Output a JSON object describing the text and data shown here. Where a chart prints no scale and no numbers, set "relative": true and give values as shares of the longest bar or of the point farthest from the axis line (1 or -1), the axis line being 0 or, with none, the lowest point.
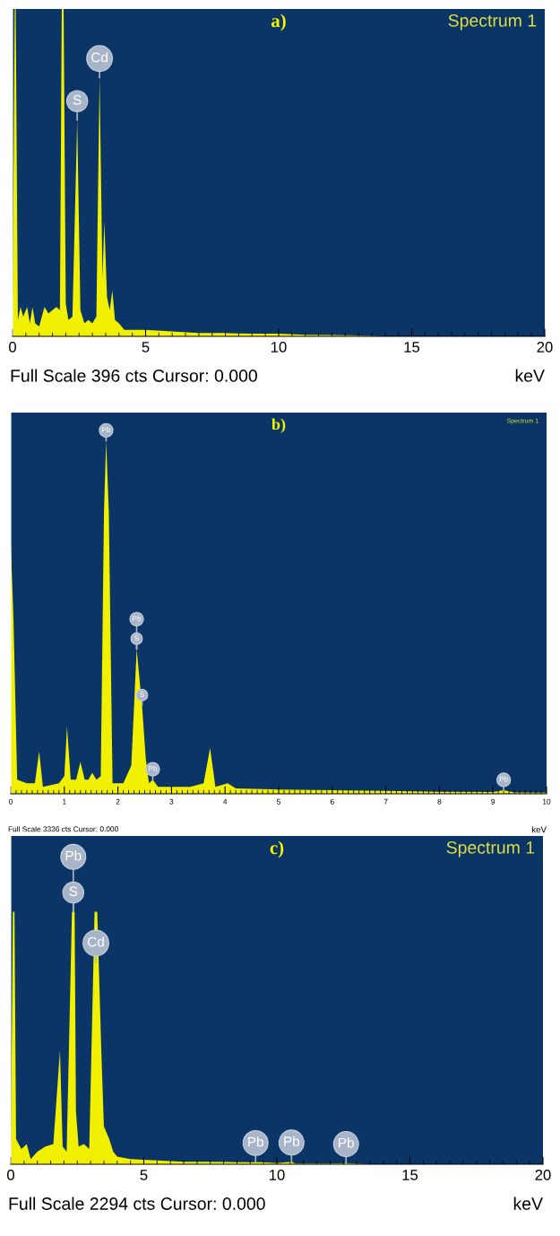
{
  "chart_data": [
    {
      "type": "area",
      "title": "a)",
      "xlabel": "keV",
      "relative": true,
      "tick_labels": "x",
      "grid": false,
      "legend": false,
      "xlim": [
        0,
        20
      ],
      "xticks": [
        0,
        5,
        10,
        15,
        20
      ],
      "series": [
        {
          "color": "#f0f000",
          "x": [
            0.0,
            0.08,
            0.12,
            0.2,
            0.3,
            0.4,
            0.55,
            0.65,
            0.75,
            0.85,
            1.0,
            1.2,
            1.35,
            1.5,
            1.65,
            1.78,
            1.85,
            1.92,
            2.0,
            2.1,
            2.25,
            2.43,
            2.55,
            2.7,
            2.85,
            3.0,
            3.15,
            3.27,
            3.38,
            3.45,
            3.55,
            3.65,
            3.75,
            3.85,
            4.0,
            4.2,
            5.0,
            6.0,
            7.0,
            8.0,
            9.0,
            10.0,
            11.0,
            12.0,
            13.0,
            14.0,
            20.0
          ],
          "values": [
            0.02,
            1.0,
            1.0,
            0.05,
            0.09,
            0.06,
            0.09,
            0.04,
            0.09,
            0.04,
            0.03,
            0.09,
            0.07,
            0.08,
            0.09,
            0.08,
            1.0,
            1.0,
            0.1,
            0.05,
            0.06,
            0.66,
            0.08,
            0.04,
            0.05,
            0.04,
            0.06,
            0.79,
            0.18,
            0.35,
            0.12,
            0.08,
            0.14,
            0.05,
            0.04,
            0.02,
            0.02,
            0.015,
            0.01,
            0.01,
            0.008,
            0.008,
            0.005,
            0.004,
            0.003,
            0.0,
            0.0
          ]
        }
      ],
      "annotations": [
        "Spectrum 1",
        "Full Scale 396 cts Cursor: 0.000",
        {
          "text": "S",
          "x": 2.43,
          "y": 0.66
        },
        {
          "text": "Cd",
          "x": 3.27,
          "y": 0.79
        }
      ]
    },
    {
      "type": "area",
      "title": "b)",
      "xlabel": "keV",
      "relative": true,
      "tick_labels": "x",
      "grid": false,
      "legend": false,
      "xlim": [
        0,
        10
      ],
      "xticks": [
        0,
        1,
        2,
        3,
        4,
        5,
        6,
        7,
        8,
        9,
        10
      ],
      "series": [
        {
          "color": "#f0f000",
          "x": [
            0.0,
            0.05,
            0.12,
            0.3,
            0.45,
            0.53,
            0.6,
            0.9,
            1.0,
            1.05,
            1.12,
            1.22,
            1.3,
            1.38,
            1.45,
            1.52,
            1.6,
            1.68,
            1.74,
            1.78,
            1.83,
            1.9,
            2.1,
            2.25,
            2.35,
            2.45,
            2.52,
            2.58,
            2.65,
            2.75,
            3.0,
            3.35,
            3.6,
            3.72,
            3.82,
            4.05,
            4.2,
            5.0,
            6.0,
            7.0,
            8.0,
            9.0,
            9.2,
            9.4,
            10.0
          ],
          "values": [
            0.71,
            0.5,
            0.04,
            0.03,
            0.03,
            0.12,
            0.02,
            0.03,
            0.05,
            0.19,
            0.04,
            0.04,
            0.09,
            0.04,
            0.04,
            0.06,
            0.04,
            0.05,
            0.8,
            1.0,
            0.8,
            0.03,
            0.03,
            0.08,
            0.41,
            0.25,
            0.1,
            0.03,
            0.04,
            0.02,
            0.02,
            0.02,
            0.03,
            0.13,
            0.02,
            0.03,
            0.015,
            0.012,
            0.01,
            0.008,
            0.006,
            0.005,
            0.01,
            0.004,
            0.003
          ]
        }
      ],
      "annotations": [
        "Spectrum 1",
        "Full Scale 3336 cts Cursor: 0.000",
        {
          "text": "Pb",
          "x": 1.78,
          "y": 1.0
        },
        {
          "text": "S",
          "x": 2.35,
          "y": 0.41
        },
        {
          "text": "Pb",
          "x": 2.35,
          "y": 0.41
        },
        {
          "text": "S",
          "x": 2.45,
          "y": 0.25
        },
        {
          "text": "Pb",
          "x": 2.65,
          "y": 0.04
        },
        {
          "text": "Pb",
          "x": 9.2,
          "y": 0.01
        }
      ]
    },
    {
      "type": "area",
      "title": "c)",
      "xlabel": "keV",
      "relative": true,
      "tick_labels": "x",
      "grid": false,
      "legend": false,
      "xlim": [
        0,
        20
      ],
      "xticks": [
        0,
        5,
        10,
        15,
        20
      ],
      "series": [
        {
          "color": "#f0f000",
          "x": [
            0.0,
            0.08,
            0.14,
            0.2,
            0.3,
            0.4,
            0.6,
            0.75,
            1.0,
            1.3,
            1.6,
            1.85,
            1.95,
            2.1,
            2.3,
            2.4,
            2.45,
            2.55,
            2.75,
            2.95,
            3.15,
            3.25,
            3.4,
            3.5,
            3.7,
            3.85,
            4.0,
            4.5,
            5.5,
            6.5,
            7.5,
            8.5,
            9.5,
            10.0,
            10.55,
            10.7,
            12.0,
            12.6,
            13.5,
            20.0
          ],
          "values": [
            0.02,
            1.0,
            1.0,
            0.1,
            0.08,
            0.06,
            0.08,
            0.02,
            0.05,
            0.07,
            0.08,
            0.45,
            0.07,
            0.05,
            1.0,
            1.0,
            0.21,
            0.07,
            0.08,
            0.06,
            1.0,
            1.0,
            0.46,
            0.15,
            0.1,
            0.05,
            0.03,
            0.02,
            0.015,
            0.01,
            0.01,
            0.008,
            0.008,
            0.004,
            0.01,
            0.003,
            0.003,
            0.004,
            0.0,
            0.0
          ]
        }
      ],
      "annotations": [
        "Spectrum 1",
        "Full Scale 2294 cts Cursor: 0.000",
        {
          "text": "S",
          "x": 2.35,
          "y": 1.0
        },
        {
          "text": "Pb",
          "x": 2.35,
          "y": 1.0
        },
        {
          "text": "Cd",
          "x": 3.2,
          "y": 0.8
        },
        {
          "text": "Pb",
          "x": 9.2,
          "y": 0.008
        },
        {
          "text": "Pb",
          "x": 10.55,
          "y": 0.01
        },
        {
          "text": "Pb",
          "x": 12.6,
          "y": 0.004
        }
      ]
    }
  ]
}
